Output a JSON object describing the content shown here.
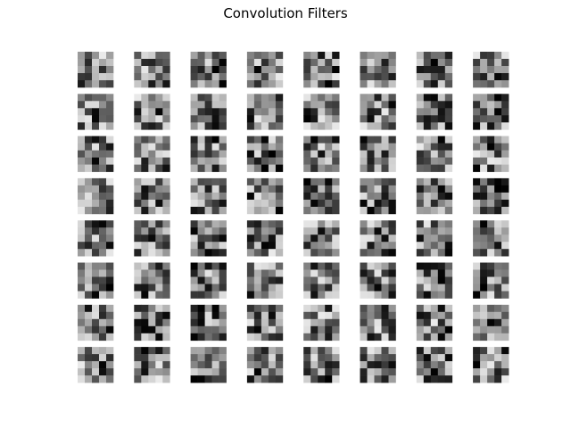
{
  "chart_data": {
    "type": "heatmap",
    "title": "Convolution Filters",
    "rows": 8,
    "cols": 8,
    "kernel_size": 5,
    "colormap": "gray",
    "value_range": [
      0,
      1
    ],
    "grid": false,
    "axes_visible": false
  }
}
